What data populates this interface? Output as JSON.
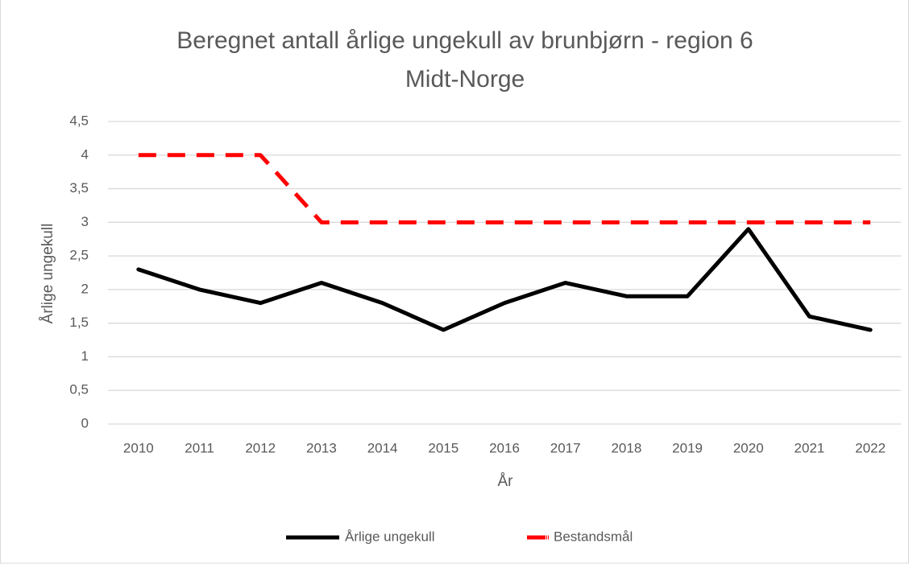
{
  "chart_data": {
    "type": "line",
    "title": [
      "Beregnet antall årlige ungekull av brunbjørn - region 6",
      "Midt-Norge"
    ],
    "x_label": "År",
    "y_label": "Årlige ungekull",
    "categories": [
      "2010",
      "2011",
      "2012",
      "2013",
      "2014",
      "2015",
      "2016",
      "2017",
      "2018",
      "2019",
      "2020",
      "2021",
      "2022"
    ],
    "series": [
      {
        "name": "Årlige ungekull",
        "color": "#000000",
        "dashed": false,
        "values": [
          2.3,
          2.0,
          1.8,
          2.1,
          1.8,
          1.4,
          1.8,
          2.1,
          1.9,
          1.9,
          2.9,
          1.6,
          1.4
        ]
      },
      {
        "name": "Bestandsmål",
        "color": "#ff0000",
        "dashed": true,
        "values": [
          4,
          4,
          4,
          3,
          3,
          3,
          3,
          3,
          3,
          3,
          3,
          3,
          3
        ]
      }
    ],
    "ylim": [
      0,
      4.5
    ],
    "yticks": [
      0,
      {
        "value": 0.5,
        "label": "0,5"
      },
      1,
      {
        "value": 1.5,
        "label": "1,5"
      },
      2,
      {
        "value": 2.5,
        "label": "2,5"
      },
      3,
      {
        "value": 3.5,
        "label": "3,5"
      },
      4,
      {
        "value": 4.5,
        "label": "4,5"
      }
    ],
    "grid": true,
    "legend": "bottom"
  }
}
